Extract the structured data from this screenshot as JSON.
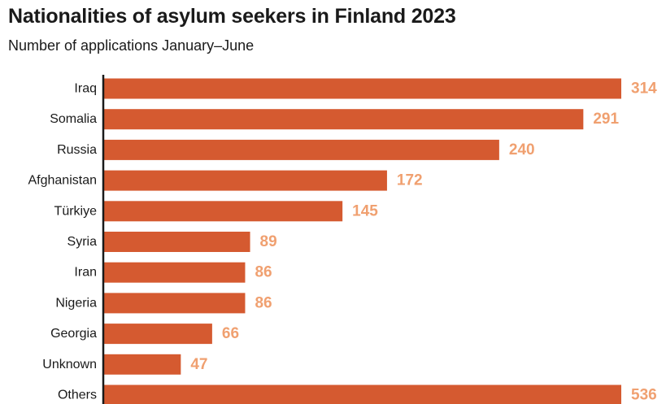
{
  "title": "Nationalities of asylum seekers in Finland 2023",
  "subtitle": "Number of applications January–June",
  "colors": {
    "bar": "#d55a30",
    "value_label": "#f0a070",
    "axis": "#1a1a1a"
  },
  "chart_data": {
    "type": "bar",
    "orientation": "horizontal",
    "title": "Nationalities of asylum seekers in Finland 2023",
    "subtitle": "Number of applications January–June",
    "categories": [
      "Iraq",
      "Somalia",
      "Russia",
      "Afghanistan",
      "Türkiye",
      "Syria",
      "Iran",
      "Nigeria",
      "Georgia",
      "Unknown",
      "Others"
    ],
    "values": [
      314,
      291,
      240,
      172,
      145,
      89,
      86,
      86,
      66,
      47,
      536
    ],
    "value_labels": [
      "314",
      "291",
      "240",
      "172",
      "145",
      "89",
      "86",
      "86",
      "66",
      "47",
      "536"
    ],
    "xlim": [
      0,
      314
    ],
    "truncated_categories": [
      "Others"
    ],
    "grid": false,
    "data_labels": true
  }
}
